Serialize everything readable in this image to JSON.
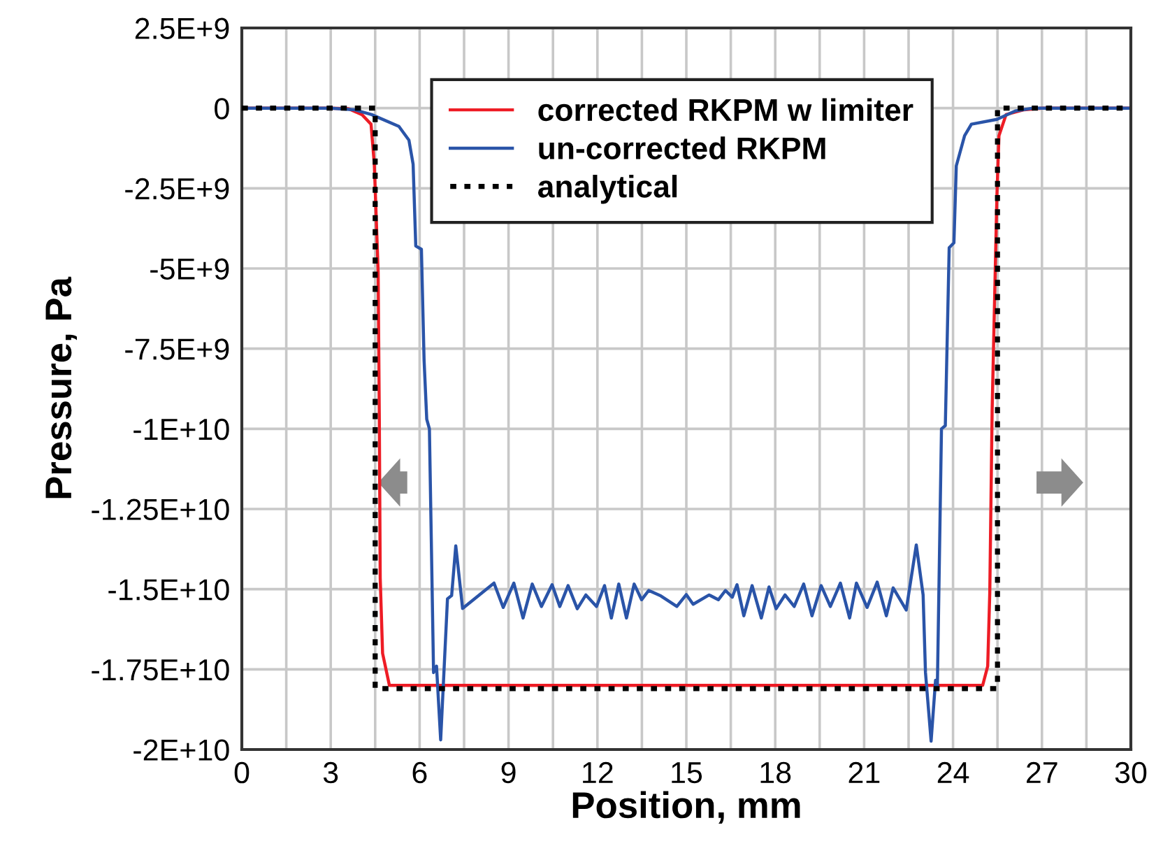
{
  "chart_data": {
    "type": "line",
    "xlabel": "Position, mm",
    "ylabel": "Pressure, Pa",
    "xlim": [
      0,
      30
    ],
    "ylim": [
      -20000000000.0,
      2500000000.0
    ],
    "xticks": [
      0,
      {
        "value": 1.5,
        "label": null
      },
      3,
      {
        "value": 4.5,
        "label": null
      },
      6,
      {
        "value": 7.5,
        "label": null
      },
      9,
      {
        "value": 10.5,
        "label": null
      },
      12,
      {
        "value": 13.5,
        "label": null
      },
      15,
      {
        "value": 16.5,
        "label": null
      },
      18,
      {
        "value": 19.5,
        "label": null
      },
      21,
      {
        "value": 22.5,
        "label": null
      },
      24,
      {
        "value": 25.5,
        "label": null
      },
      27,
      {
        "value": 28.5,
        "label": null
      },
      30
    ],
    "yticks": [
      {
        "value": 2500000000.0,
        "label": "2.5E+9"
      },
      0,
      {
        "value": -2500000000.0,
        "label": "-2.5E+9"
      },
      {
        "value": -5000000000.0,
        "label": "-5E+9"
      },
      {
        "value": -7500000000.0,
        "label": "-7.5E+9"
      },
      {
        "value": -10000000000.0,
        "label": "-1E+10"
      },
      {
        "value": -12500000000.0,
        "label": "-1.25E+10"
      },
      {
        "value": -15000000000.0,
        "label": "-1.5E+10"
      },
      {
        "value": -17500000000.0,
        "label": "-1.75E+10"
      },
      {
        "value": -20000000000.0,
        "label": "-2E+10"
      }
    ],
    "grid": true,
    "legend": "top",
    "marker": "none",
    "series": [
      {
        "name": "corrected RKPM w limiter",
        "color": "#ee1c25",
        "line_style": "solid",
        "x": [
          0,
          3.0,
          3.6,
          4.05,
          4.36,
          4.47,
          4.6,
          4.64,
          4.67,
          4.75,
          4.98,
          10,
          15,
          20,
          25.0,
          25.17,
          25.24,
          25.32,
          25.48,
          25.55,
          25.79,
          26.4,
          27,
          30
        ],
        "values": [
          0,
          0,
          -20000000.0,
          -200000000.0,
          -500000000.0,
          -1730000000.0,
          -5100000000.0,
          -9700000000.0,
          -14650000000.0,
          -17000000000.0,
          -18000000000.0,
          -18000000000.0,
          -18000000000.0,
          -18000000000.0,
          -18000000000.0,
          -17400000000.0,
          -15100000000.0,
          -9400000000.0,
          -2750000000.0,
          -860000000.0,
          -200000000.0,
          -50000000.0,
          0,
          0
        ]
      },
      {
        "name": "un-corrected RKPM",
        "color": "#2a54a8",
        "line_style": "solid",
        "x": [
          0,
          3.0,
          3.8,
          4.38,
          5.3,
          5.64,
          5.78,
          5.87,
          6.06,
          6.15,
          6.24,
          6.33,
          6.47,
          6.57,
          6.71,
          6.94,
          7.08,
          7.22,
          7.45,
          8.51,
          8.82,
          9.18,
          9.49,
          9.8,
          10.11,
          10.47,
          10.73,
          11.01,
          11.32,
          11.61,
          11.97,
          12.24,
          12.47,
          12.72,
          12.98,
          13.24,
          13.49,
          13.73,
          14.14,
          14.68,
          15.0,
          15.23,
          15.77,
          16.08,
          16.32,
          16.55,
          16.71,
          16.94,
          17.22,
          17.53,
          17.79,
          18.03,
          18.33,
          18.64,
          18.96,
          19.24,
          19.55,
          19.86,
          20.2,
          20.51,
          20.74,
          21.1,
          21.44,
          21.75,
          21.98,
          22.42,
          22.76,
          22.99,
          23.07,
          23.26,
          23.41,
          23.47,
          23.61,
          23.74,
          23.87,
          24.03,
          24.11,
          24.39,
          24.62,
          25.48,
          26.1,
          26.7,
          30
        ],
        "values": [
          0,
          0,
          -50000000.0,
          -200000000.0,
          -570000000.0,
          -1000000000.0,
          -1750000000.0,
          -4300000000.0,
          -4400000000.0,
          -7850000000.0,
          -9700000000.0,
          -10000000000.0,
          -17600000000.0,
          -17400000000.0,
          -19700000000.0,
          -15300000000.0,
          -15200000000.0,
          -13650000000.0,
          -15600000000.0,
          -14810000000.0,
          -15570000000.0,
          -14810000000.0,
          -15900000000.0,
          -14840000000.0,
          -15540000000.0,
          -14860000000.0,
          -15540000000.0,
          -14890000000.0,
          -15610000000.0,
          -15180000000.0,
          -15540000000.0,
          -14890000000.0,
          -15900000000.0,
          -14840000000.0,
          -15900000000.0,
          -14840000000.0,
          -15330000000.0,
          -15040000000.0,
          -15210000000.0,
          -15540000000.0,
          -15170000000.0,
          -15470000000.0,
          -15180000000.0,
          -15330000000.0,
          -15040000000.0,
          -15250000000.0,
          -14860000000.0,
          -15830000000.0,
          -14890000000.0,
          -15900000000.0,
          -14930000000.0,
          -15610000000.0,
          -15180000000.0,
          -15540000000.0,
          -14840000000.0,
          -15830000000.0,
          -14890000000.0,
          -15540000000.0,
          -14810000000.0,
          -15900000000.0,
          -14810000000.0,
          -15570000000.0,
          -14780000000.0,
          -15830000000.0,
          -14960000000.0,
          -15650000000.0,
          -13620000000.0,
          -15180000000.0,
          -17600000000.0,
          -19740000000.0,
          -17840000000.0,
          -18100000000.0,
          -10000000000.0,
          -9900000000.0,
          -4350000000.0,
          -4200000000.0,
          -1800000000.0,
          -860000000.0,
          -500000000.0,
          -350000000.0,
          -90000000.0,
          0,
          0
        ]
      },
      {
        "name": "analytical",
        "color": "#000000",
        "line_style": "dotted",
        "x": [
          0,
          4.5,
          4.5,
          25.5,
          25.5,
          30
        ],
        "values": [
          0,
          0,
          -18100000000.0,
          -18100000000.0,
          0,
          0
        ]
      }
    ]
  }
}
